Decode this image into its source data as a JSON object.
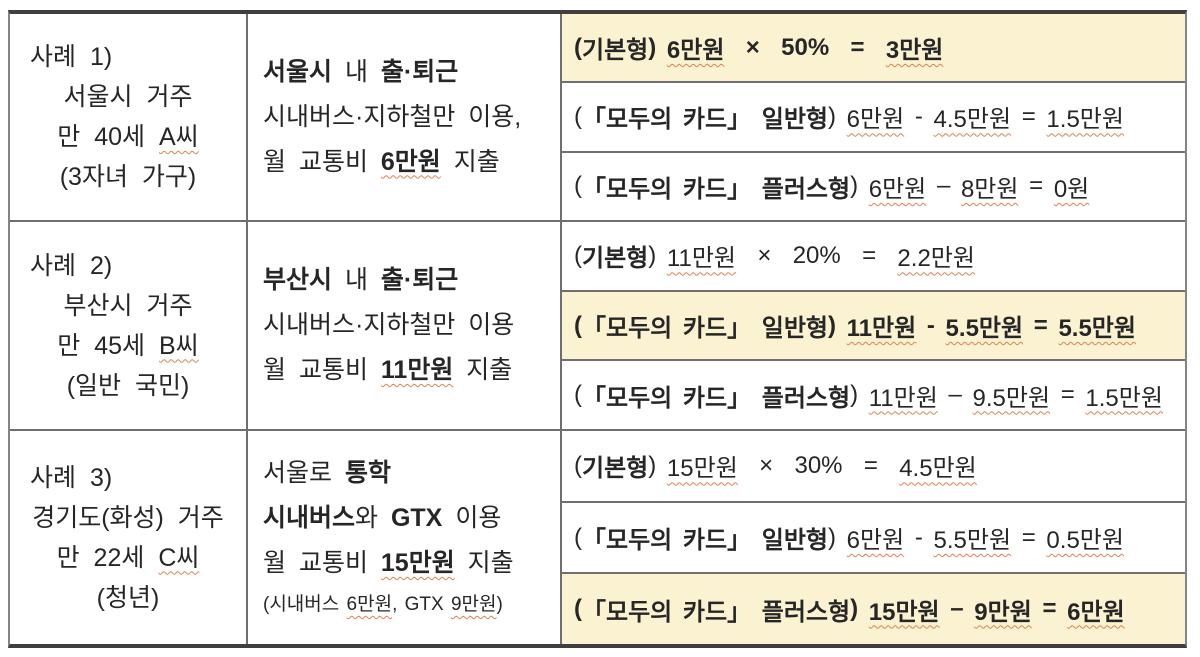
{
  "colors": {
    "highlight": "#faf2d1",
    "border_thick": "#3f3f3f",
    "border_thin": "#6f6f6f",
    "underline": "#e08050",
    "text": "#262626"
  },
  "rows": [
    {
      "profile": [
        {
          "align": "left",
          "segs": [
            {
              "t": "사례 1)"
            }
          ]
        },
        {
          "segs": [
            {
              "t": "서울시 거주"
            }
          ]
        },
        {
          "segs": [
            {
              "t": "만 40세 "
            },
            {
              "t": "A씨",
              "wavy": true
            }
          ]
        },
        {
          "segs": [
            {
              "t": "(3자녀 가구)"
            }
          ]
        }
      ],
      "usage": [
        {
          "segs": [
            {
              "t": "서울시",
              "b": true
            },
            {
              "t": " 내 "
            },
            {
              "t": "출·퇴근",
              "b": true
            }
          ]
        },
        {
          "segs": [
            {
              "t": "시내버스·지하철만 이용,"
            }
          ]
        },
        {
          "segs": [
            {
              "t": "월 교통비 "
            },
            {
              "t": "6만원",
              "b": true,
              "wavy": true
            },
            {
              "t": " 지출"
            }
          ]
        }
      ],
      "benefits": [
        {
          "hl": true,
          "bold": true,
          "segs": [
            {
              "t": "("
            },
            {
              "t": "기본형"
            },
            {
              "t": ") "
            },
            {
              "t": "6만원",
              "wavy": true
            },
            {
              "t": "  ×  50%  =  "
            },
            {
              "t": "3만원",
              "wavy": true
            }
          ]
        },
        {
          "segs": [
            {
              "t": "("
            },
            {
              "t": "「모두의 카드」",
              "b": true
            },
            {
              "t": " "
            },
            {
              "t": "일반형",
              "b": true
            },
            {
              "t": ") "
            },
            {
              "t": "6만원",
              "wavy": true
            },
            {
              "t": " - "
            },
            {
              "t": "4.5만원",
              "wavy": true
            },
            {
              "t": " = "
            },
            {
              "t": "1.5만원",
              "wavy": true
            }
          ]
        },
        {
          "segs": [
            {
              "t": "("
            },
            {
              "t": "「모두의 카드」",
              "b": true
            },
            {
              "t": " "
            },
            {
              "t": "플러스형",
              "b": true
            },
            {
              "t": ") "
            },
            {
              "t": "6만원",
              "wavy": true
            },
            {
              "t": " – "
            },
            {
              "t": "8만원",
              "wavy": true
            },
            {
              "t": " = "
            },
            {
              "t": "0원",
              "wavy": true
            }
          ]
        }
      ]
    },
    {
      "profile": [
        {
          "align": "left",
          "segs": [
            {
              "t": "사례 2)"
            }
          ]
        },
        {
          "segs": [
            {
              "t": "부산시 거주"
            }
          ]
        },
        {
          "segs": [
            {
              "t": "만 45세 "
            },
            {
              "t": "B씨",
              "wavy": true
            }
          ]
        },
        {
          "segs": [
            {
              "t": "(일반 국민)"
            }
          ]
        }
      ],
      "usage": [
        {
          "segs": [
            {
              "t": "부산시",
              "b": true
            },
            {
              "t": " 내 "
            },
            {
              "t": "출·퇴근",
              "b": true
            }
          ]
        },
        {
          "segs": [
            {
              "t": "시내버스·지하철만 이용"
            }
          ]
        },
        {
          "segs": [
            {
              "t": "월 교통비 "
            },
            {
              "t": "11만원",
              "b": true,
              "wavy": true
            },
            {
              "t": " 지출"
            }
          ]
        }
      ],
      "benefits": [
        {
          "segs": [
            {
              "t": "("
            },
            {
              "t": "기본형",
              "b": true
            },
            {
              "t": ") "
            },
            {
              "t": "11만원",
              "wavy": true
            },
            {
              "t": "  ×  20%  =  "
            },
            {
              "t": "2.2만원",
              "wavy": true
            }
          ]
        },
        {
          "hl": true,
          "bold": true,
          "segs": [
            {
              "t": "("
            },
            {
              "t": "「모두의 카드」"
            },
            {
              "t": " "
            },
            {
              "t": "일반형"
            },
            {
              "t": ") "
            },
            {
              "t": "11만원",
              "wavy": true
            },
            {
              "t": " - "
            },
            {
              "t": "5.5만원",
              "wavy": true
            },
            {
              "t": " = "
            },
            {
              "t": "5.5만원",
              "wavy": true
            }
          ]
        },
        {
          "segs": [
            {
              "t": "("
            },
            {
              "t": "「모두의 카드」",
              "b": true
            },
            {
              "t": " "
            },
            {
              "t": "플러스형",
              "b": true
            },
            {
              "t": ") "
            },
            {
              "t": "11만원",
              "wavy": true
            },
            {
              "t": " – "
            },
            {
              "t": "9.5만원",
              "wavy": true
            },
            {
              "t": " = "
            },
            {
              "t": "1.5만원",
              "wavy": true
            }
          ]
        }
      ]
    },
    {
      "profile": [
        {
          "align": "left",
          "segs": [
            {
              "t": "사례 3)"
            }
          ]
        },
        {
          "segs": [
            {
              "t": "경기도(화성) 거주"
            }
          ]
        },
        {
          "segs": [
            {
              "t": "만 22세 "
            },
            {
              "t": "C씨",
              "wavy": true
            }
          ]
        },
        {
          "segs": [
            {
              "t": "(청년)"
            }
          ]
        }
      ],
      "usage": [
        {
          "segs": [
            {
              "t": "서울로 "
            },
            {
              "t": "통학",
              "b": true
            }
          ]
        },
        {
          "segs": [
            {
              "t": "시내버스",
              "b": true
            },
            {
              "t": "와 "
            },
            {
              "t": "GTX",
              "b": true
            },
            {
              "t": " 이용"
            }
          ]
        },
        {
          "segs": [
            {
              "t": "월 교통비 "
            },
            {
              "t": "15만원",
              "b": true,
              "wavy": true
            },
            {
              "t": " 지출"
            }
          ]
        },
        {
          "small": true,
          "segs": [
            {
              "t": "(시내버스 "
            },
            {
              "t": "6만원",
              "wavy": true
            },
            {
              "t": ", GTX "
            },
            {
              "t": "9만원",
              "wavy": true
            },
            {
              "t": ")"
            }
          ]
        }
      ],
      "benefits": [
        {
          "segs": [
            {
              "t": "("
            },
            {
              "t": "기본형",
              "b": true
            },
            {
              "t": ") "
            },
            {
              "t": "15만원",
              "wavy": true
            },
            {
              "t": "  ×  30%  =  "
            },
            {
              "t": "4.5만원",
              "wavy": true
            }
          ]
        },
        {
          "segs": [
            {
              "t": "("
            },
            {
              "t": "「모두의 카드」",
              "b": true
            },
            {
              "t": " "
            },
            {
              "t": "일반형",
              "b": true
            },
            {
              "t": ") "
            },
            {
              "t": "6만원",
              "wavy": true
            },
            {
              "t": " - "
            },
            {
              "t": "5.5만원",
              "wavy": true
            },
            {
              "t": " = "
            },
            {
              "t": "0.5만원",
              "wavy": true
            }
          ]
        },
        {
          "hl": true,
          "bold": true,
          "segs": [
            {
              "t": "("
            },
            {
              "t": "「모두의 카드」"
            },
            {
              "t": " "
            },
            {
              "t": "플러스형"
            },
            {
              "t": ") "
            },
            {
              "t": "15만원",
              "wavy": true
            },
            {
              "t": " – "
            },
            {
              "t": "9만원",
              "wavy": true
            },
            {
              "t": " = "
            },
            {
              "t": "6만원",
              "wavy": true
            }
          ]
        }
      ]
    }
  ]
}
